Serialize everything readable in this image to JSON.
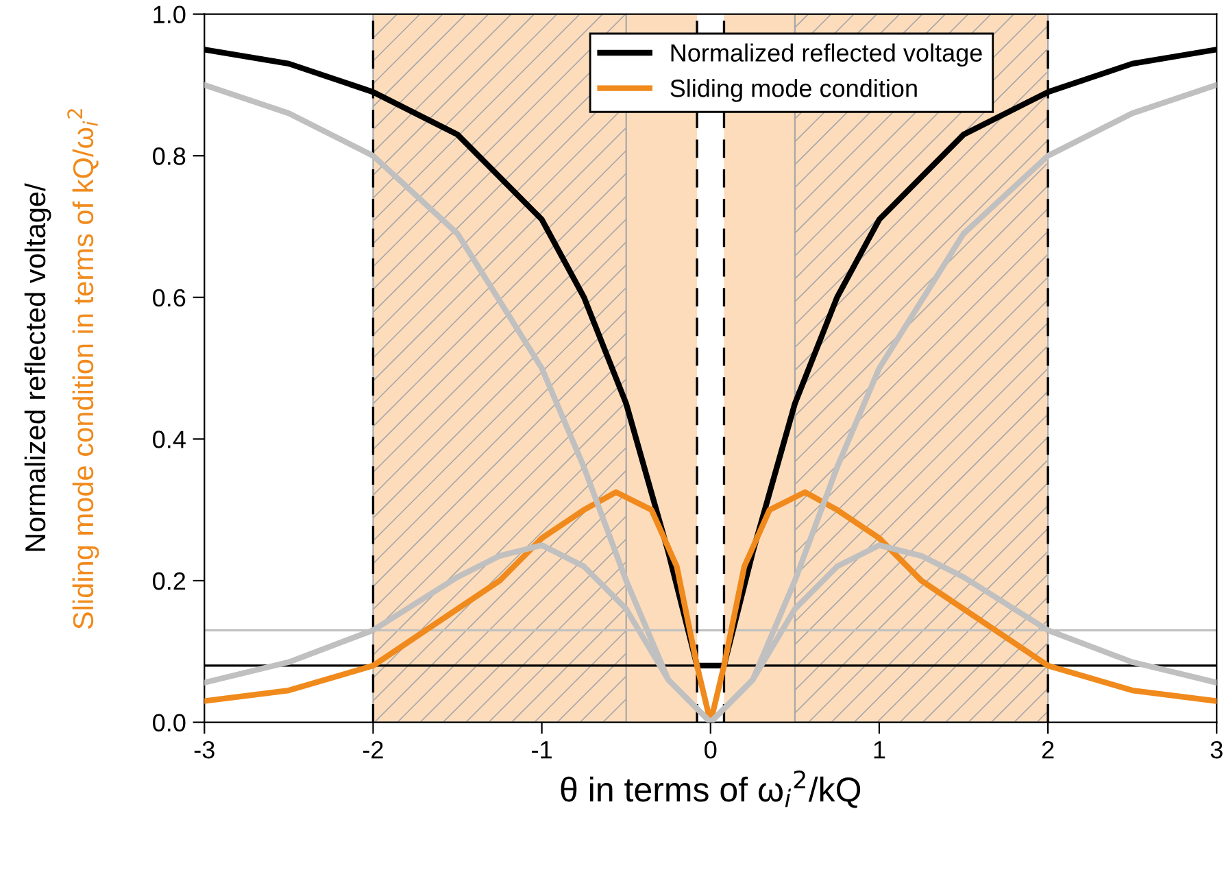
{
  "chart_data": {
    "type": "line",
    "xlabel": "θ in terms of ω$_{i}$$^{2}$/kQ",
    "ylabel": "Normalized reflected voltage/\nSliding mode condition in terms of kQ/ω$_{i}$$^{2}$",
    "series": [
      {
        "name": "Normalized reflected voltage",
        "color": "#000000",
        "x": [
          -3,
          -2.5,
          -2,
          -1.5,
          -1,
          -0.75,
          -0.5,
          -0.25,
          -0.08,
          0.08,
          0.25,
          0.5,
          0.75,
          1,
          1.5,
          2,
          2.5,
          3
        ],
        "values": [
          0.95,
          0.93,
          0.89,
          0.83,
          0.71,
          0.6,
          0.45,
          0.24,
          0.08,
          0.08,
          0.24,
          0.45,
          0.6,
          0.71,
          0.83,
          0.89,
          0.93,
          0.95
        ]
      },
      {
        "name": "Sliding mode condition",
        "color": "#f08a1c",
        "x": [
          -3,
          -2.5,
          -2,
          -1.5,
          -1.25,
          -1,
          -0.75,
          -0.56,
          -0.35,
          -0.2,
          -0.08,
          0,
          0.08,
          0.2,
          0.35,
          0.56,
          0.75,
          1,
          1.25,
          1.5,
          2,
          2.5,
          3
        ],
        "values": [
          0.03,
          0.045,
          0.08,
          0.16,
          0.2,
          0.26,
          0.3,
          0.325,
          0.3,
          0.22,
          0.08,
          0,
          0.08,
          0.22,
          0.3,
          0.325,
          0.3,
          0.26,
          0.2,
          0.16,
          0.08,
          0.045,
          0.03
        ]
      },
      {
        "color": "#c0c0c0",
        "x": [
          -3,
          -2.5,
          -2,
          -1.5,
          -1,
          -0.75,
          -0.5,
          -0.25,
          0,
          0.25,
          0.5,
          0.75,
          1,
          1.5,
          2,
          2.5,
          3
        ],
        "values": [
          0.9,
          0.86,
          0.8,
          0.69,
          0.5,
          0.36,
          0.2,
          0.06,
          0,
          0.06,
          0.2,
          0.36,
          0.5,
          0.69,
          0.8,
          0.86,
          0.9
        ]
      },
      {
        "color": "#c0c0c0",
        "x": [
          -3,
          -2.5,
          -2,
          -1.5,
          -1.25,
          -1,
          -0.75,
          -0.5,
          -0.25,
          0,
          0.25,
          0.5,
          0.75,
          1,
          1.25,
          1.5,
          2,
          2.5,
          3
        ],
        "values": [
          0.056,
          0.085,
          0.13,
          0.205,
          0.235,
          0.25,
          0.22,
          0.16,
          0.06,
          0,
          0.06,
          0.16,
          0.22,
          0.25,
          0.235,
          0.205,
          0.13,
          0.085,
          0.056
        ]
      }
    ],
    "xlim": [
      -3,
      3
    ],
    "ylim": [
      0,
      1
    ],
    "xticks": [
      -3,
      -2,
      -1,
      0,
      1,
      2,
      3
    ],
    "yticks": [
      {
        "value": 0,
        "label": "0.0"
      },
      {
        "value": 0.2,
        "label": "0.2"
      },
      {
        "value": 0.4,
        "label": "0.4"
      },
      {
        "value": 0.6,
        "label": "0.6"
      },
      {
        "value": 0.8,
        "label": "0.8"
      },
      {
        "value": 1,
        "label": "1.0"
      }
    ],
    "ref_lines": [
      {
        "axis": "y",
        "value": 0.08,
        "color": "#000000",
        "line_style": "solid"
      },
      {
        "axis": "y",
        "value": 0.13,
        "color": "#c0c0c0",
        "line_style": "solid"
      },
      {
        "axis": "x",
        "value": -2,
        "color": "#000000",
        "line_style": "dashed"
      },
      {
        "axis": "x",
        "value": -0.08,
        "color": "#000000",
        "line_style": "dashed"
      },
      {
        "axis": "x",
        "value": 0.08,
        "color": "#000000",
        "line_style": "dashed"
      },
      {
        "axis": "x",
        "value": 2,
        "color": "#000000",
        "line_style": "dashed"
      }
    ],
    "bands": [
      {
        "axis": "x",
        "from": -2,
        "to": -0.08,
        "color": "#fddcbc"
      },
      {
        "axis": "x",
        "from": 0.08,
        "to": 2,
        "color": "#fddcbc"
      },
      {
        "axis": "x",
        "from": -2,
        "to": -0.5,
        "color": "#a8a8a8"
      },
      {
        "axis": "x",
        "from": 0.5,
        "to": 2,
        "color": "#a8a8a8"
      }
    ],
    "legend": "top",
    "grid": false,
    "marker": "none",
    "line_style": "solid"
  }
}
